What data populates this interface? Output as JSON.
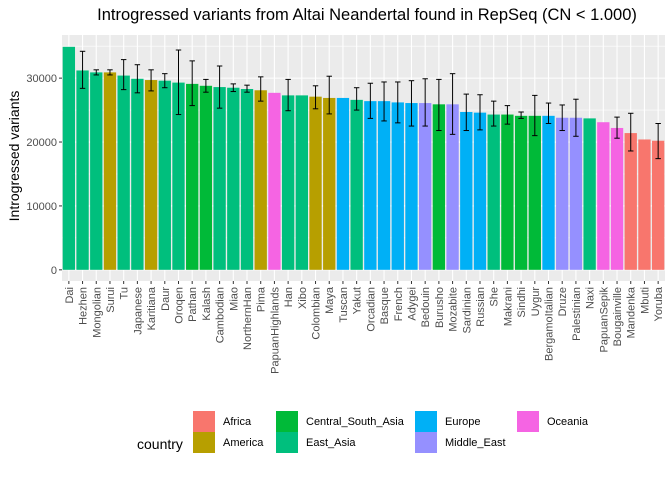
{
  "chart_data": {
    "type": "bar",
    "title": "Introgressed variants from Altai Neandertal found in RepSeq (CN < 1.000)",
    "xlabel": "",
    "ylabel": "Introgressed variants",
    "ylim": [
      -1750,
      36750
    ],
    "yticks": [
      0,
      10000,
      20000,
      30000
    ],
    "grid": true,
    "legend": {
      "title": "country",
      "position": "bottom",
      "entries": [
        {
          "name": "Africa",
          "color": "#F8766D"
        },
        {
          "name": "America",
          "color": "#B79F00"
        },
        {
          "name": "Central_South_Asia",
          "color": "#00BA38"
        },
        {
          "name": "East_Asia",
          "color": "#00BF7D"
        },
        {
          "name": "Europe",
          "color": "#00B0F6"
        },
        {
          "name": "Middle_East",
          "color": "#9590FF"
        },
        {
          "name": "Oceania",
          "color": "#F564E3"
        }
      ]
    },
    "categories": [
      "Dai",
      "Hezhen",
      "Mongolian",
      "Surui",
      "Tu",
      "Japanese",
      "Karitiana",
      "Daur",
      "Oroqen",
      "Pathan",
      "Kalash",
      "Cambodian",
      "Miao",
      "NorthernHan",
      "Pima",
      "PapuanHighlands",
      "Han",
      "Xibo",
      "Colombian",
      "Maya",
      "Tuscan",
      "Yakut",
      "Orcadian",
      "Basque",
      "French",
      "Adygei",
      "Bedouin",
      "Burusho",
      "Mozabite",
      "Sardinian",
      "Russian",
      "She",
      "Makrani",
      "Sindhi",
      "Uygur",
      "BergamoItalian",
      "Druze",
      "Palestinian",
      "Naxi",
      "PapuanSepik",
      "Bougainville",
      "Mandenka",
      "Mbuti",
      "Yoruba"
    ],
    "groups": [
      "East_Asia",
      "East_Asia",
      "East_Asia",
      "America",
      "East_Asia",
      "East_Asia",
      "America",
      "East_Asia",
      "East_Asia",
      "Central_South_Asia",
      "Central_South_Asia",
      "East_Asia",
      "East_Asia",
      "East_Asia",
      "America",
      "Oceania",
      "East_Asia",
      "East_Asia",
      "America",
      "America",
      "Europe",
      "East_Asia",
      "Europe",
      "Europe",
      "Europe",
      "Europe",
      "Middle_East",
      "Central_South_Asia",
      "Middle_East",
      "Europe",
      "Europe",
      "East_Asia",
      "Central_South_Asia",
      "Central_South_Asia",
      "Central_South_Asia",
      "Europe",
      "Middle_East",
      "Middle_East",
      "East_Asia",
      "Oceania",
      "Oceania",
      "Africa",
      "Africa",
      "Africa"
    ],
    "values": [
      34900,
      31200,
      30900,
      30900,
      30400,
      29900,
      29700,
      29600,
      29300,
      29100,
      28800,
      28600,
      28500,
      28300,
      28100,
      27700,
      27300,
      27300,
      27100,
      26900,
      26900,
      26600,
      26400,
      26400,
      26200,
      26100,
      26100,
      25900,
      25900,
      24700,
      24600,
      24300,
      24300,
      24100,
      24100,
      24100,
      23800,
      23800,
      23700,
      23100,
      22200,
      21400,
      20400,
      20200
    ],
    "err_low": [
      null,
      28400,
      30500,
      30500,
      28200,
      27700,
      28000,
      28500,
      24300,
      25700,
      27800,
      25300,
      27900,
      27800,
      26400,
      null,
      24900,
      null,
      25200,
      24400,
      null,
      25000,
      23700,
      23300,
      23000,
      22500,
      22500,
      21800,
      21200,
      21800,
      21900,
      22500,
      22800,
      23700,
      21000,
      22900,
      21800,
      20900,
      null,
      null,
      20600,
      18600,
      null,
      17400
    ],
    "err_high": [
      null,
      34200,
      31300,
      31300,
      32900,
      32100,
      31300,
      30700,
      34400,
      32700,
      29800,
      31900,
      29100,
      28900,
      30200,
      null,
      29800,
      null,
      28800,
      30300,
      null,
      28500,
      29200,
      29400,
      29400,
      29600,
      29900,
      29800,
      30700,
      27500,
      27400,
      26400,
      25700,
      24700,
      27300,
      26100,
      25800,
      26700,
      null,
      null,
      23900,
      24500,
      null,
      22900
    ]
  }
}
